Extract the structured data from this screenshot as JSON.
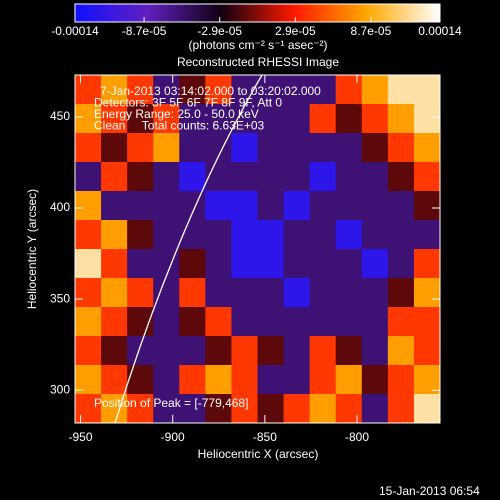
{
  "chart_data": {
    "type": "heatmap",
    "title": "Reconstructed RHESSI Image",
    "x_label": "Heliocentric X (arcsec)",
    "y_label": "Heliocentric Y (arcsec)",
    "colorbar_label": "(photons cm⁻² s⁻¹ asec⁻²)",
    "annotations": [
      "7-Jan-2013 03:14:02.000 to 03:20:02.000",
      "Detectors: 3F 5F 6F 7F 8F 9F, Att 0",
      "Energy Range: 25.0 - 50.0 keV",
      "Clean     Total counts: 6.63E+03"
    ],
    "peak_note": "Position of Peak = [-779,468]",
    "footer": "15-Jan-2013 06:54",
    "xlim": [
      -953,
      -755
    ],
    "ylim": [
      282,
      473
    ],
    "xticks": [
      -950,
      -900,
      -850,
      -800
    ],
    "yticks": [
      300,
      350,
      400,
      450
    ],
    "zlim": [
      -0.00014,
      0.00014
    ],
    "zticks": [
      -0.00014,
      {
        "value": -8.7e-05,
        "label": "-8.7e-05"
      },
      {
        "value": -2.9e-05,
        "label": "-2.9e-05"
      },
      {
        "value": 2.9e-05,
        "label": "2.9e-05"
      },
      {
        "value": 8.7e-05,
        "label": "8.7e-05"
      },
      0.00014
    ],
    "colors": [
      "#1010ff",
      "#6020c0",
      "#100010",
      "#ff1800",
      "#ffa800",
      "#ffffff"
    ],
    "z": [
      [
        4e-05,
        8e-05,
        4e-05,
        -6e-05,
        -1e-05,
        4e-05,
        -6e-05,
        -6e-05,
        -6e-05,
        -6e-05,
        4e-05,
        8e-05,
        0.00012,
        0.00012
      ],
      [
        8e-05,
        4e-05,
        -1e-05,
        4e-05,
        -6e-05,
        -6e-05,
        -6e-05,
        -6e-05,
        -6e-05,
        4e-05,
        -1e-05,
        4e-05,
        8e-05,
        0.00012
      ],
      [
        4e-05,
        -1e-05,
        4e-05,
        8e-05,
        -6e-05,
        -6e-05,
        -0.00012,
        -6e-05,
        -6e-05,
        -6e-05,
        -6e-05,
        -1e-05,
        4e-05,
        8e-05
      ],
      [
        -6e-05,
        4e-05,
        -1e-05,
        -6e-05,
        -0.00012,
        -6e-05,
        -6e-05,
        -6e-05,
        -6e-05,
        -0.00012,
        -6e-05,
        -6e-05,
        -1e-05,
        4e-05
      ],
      [
        8e-05,
        -6e-05,
        -6e-05,
        -6e-05,
        -6e-05,
        -0.00012,
        -0.00012,
        -6e-05,
        -0.00012,
        -6e-05,
        -6e-05,
        -6e-05,
        -6e-05,
        -1e-05
      ],
      [
        4e-05,
        8e-05,
        -1e-05,
        -6e-05,
        -6e-05,
        -6e-05,
        -0.00012,
        -0.00012,
        -6e-05,
        -6e-05,
        -0.00012,
        -6e-05,
        -6e-05,
        -6e-05
      ],
      [
        0.00012,
        4e-05,
        -6e-05,
        -6e-05,
        -1e-05,
        -6e-05,
        -0.00012,
        -0.00012,
        -6e-05,
        -6e-05,
        -6e-05,
        -0.00012,
        -6e-05,
        4e-05
      ],
      [
        4e-05,
        8e-05,
        4e-05,
        -6e-05,
        4e-05,
        -6e-05,
        -6e-05,
        -6e-05,
        -0.00012,
        -6e-05,
        -6e-05,
        -6e-05,
        -1e-05,
        8e-05
      ],
      [
        8e-05,
        4e-05,
        -1e-05,
        -6e-05,
        -1e-05,
        4e-05,
        -6e-05,
        -6e-05,
        -6e-05,
        -6e-05,
        -6e-05,
        -6e-05,
        4e-05,
        4e-05
      ],
      [
        4e-05,
        -1e-05,
        -6e-05,
        -6e-05,
        -6e-05,
        -1e-05,
        4e-05,
        -1e-05,
        -6e-05,
        4e-05,
        -1e-05,
        -6e-05,
        8e-05,
        4e-05
      ],
      [
        8e-05,
        4e-05,
        -1e-05,
        -6e-05,
        4e-05,
        8e-05,
        4e-05,
        -6e-05,
        -6e-05,
        4e-05,
        8e-05,
        -1e-05,
        4e-05,
        8e-05
      ],
      [
        4e-05,
        8e-05,
        4e-05,
        -6e-05,
        -6e-05,
        -1e-05,
        4e-05,
        -1e-05,
        4e-05,
        8e-05,
        4e-05,
        -6e-05,
        4e-05,
        0.00012
      ]
    ]
  }
}
